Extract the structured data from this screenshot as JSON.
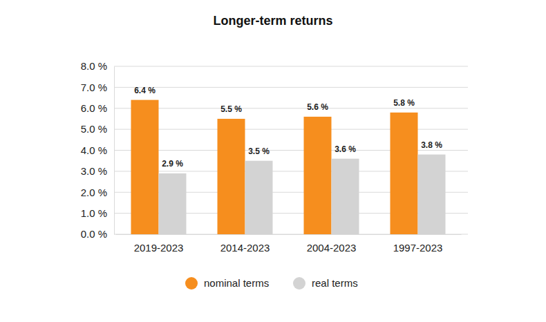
{
  "chart_data": {
    "type": "bar",
    "title": "Longer-term returns",
    "categories": [
      "2019-2023",
      "2014-2023",
      "2004-2023",
      "1997-2023"
    ],
    "series": [
      {
        "name": "nominal terms",
        "color": "#f68e1e",
        "values": [
          6.4,
          5.5,
          5.6,
          5.8
        ],
        "value_labels": [
          "6.4 %",
          "5.5 %",
          "5.6 %",
          "5.8 %"
        ]
      },
      {
        "name": "real terms",
        "color": "#d3d3d3",
        "values": [
          2.9,
          3.5,
          3.6,
          3.8
        ],
        "value_labels": [
          "2.9 %",
          "3.5 %",
          "3.6 %",
          "3.8 %"
        ]
      }
    ],
    "ylim": [
      0,
      8
    ],
    "yticks": [
      {
        "value": 0,
        "label": "0.0 %"
      },
      {
        "value": 1,
        "label": "1.0 %"
      },
      {
        "value": 2,
        "label": "2.0 %"
      },
      {
        "value": 3,
        "label": "3.0 %"
      },
      {
        "value": 4,
        "label": "4.0 %"
      },
      {
        "value": 5,
        "label": "5.0 %"
      },
      {
        "value": 6,
        "label": "6.0 %"
      },
      {
        "value": 7,
        "label": "7.0 %"
      },
      {
        "value": 8,
        "label": "8.0 %"
      }
    ],
    "grid": true,
    "legend": "bottom",
    "data_labels": true
  }
}
